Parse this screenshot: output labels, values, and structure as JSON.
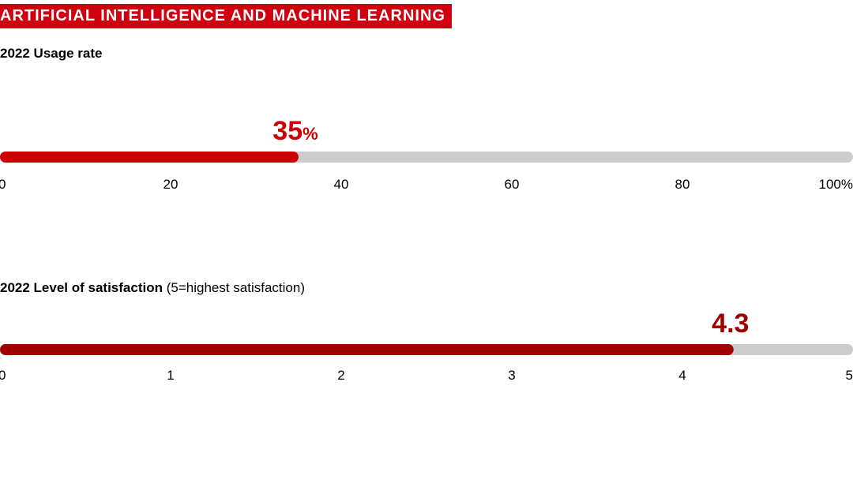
{
  "header": {
    "banner_text": "ARTIFICIAL INTELLIGENCE AND MACHINE LEARNING",
    "banner_color": "#d0000f"
  },
  "chart_data": [
    {
      "type": "bar",
      "orientation": "horizontal",
      "title": "2022 Usage rate",
      "subtitle": "",
      "value": 35,
      "value_label": "35",
      "value_unit": "%",
      "xlim": [
        0,
        100
      ],
      "ticks": [
        0,
        20,
        40,
        60,
        80,
        100
      ],
      "tick_labels": [
        "0",
        "20",
        "40",
        "60",
        "80",
        "100%"
      ],
      "bar_color": "#cc0000",
      "track_color": "#cccccc",
      "label_color": "#cc0000"
    },
    {
      "type": "bar",
      "orientation": "horizontal",
      "title": "2022 Level of satisfaction",
      "subtitle": "(5=highest satisfaction)",
      "value": 4.3,
      "value_label": "4.3",
      "value_unit": "",
      "xlim": [
        0,
        5
      ],
      "ticks": [
        0,
        1,
        2,
        3,
        4,
        5
      ],
      "tick_labels": [
        "0",
        "1",
        "2",
        "3",
        "4",
        "5"
      ],
      "bar_color": "#a00000",
      "track_color": "#cccccc",
      "label_color": "#a00000"
    }
  ]
}
